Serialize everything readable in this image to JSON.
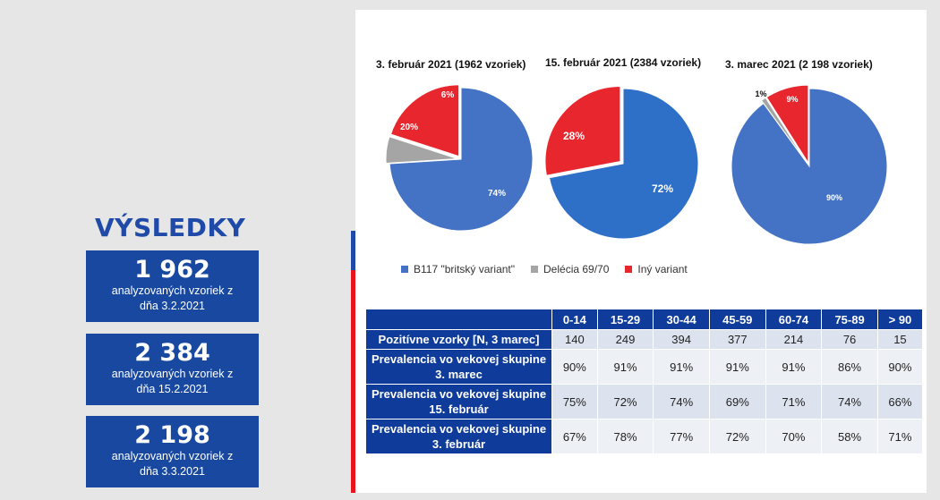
{
  "left": {
    "title": "VÝSLEDKY",
    "stats": [
      {
        "number": "1 962",
        "line1": "analyzovaných vzoriek z",
        "line2": "dňa 3.2.2021"
      },
      {
        "number": "2 384",
        "line1": "analyzovaných vzoriek z",
        "line2": "dňa 15.2.2021"
      },
      {
        "number": "2 198",
        "line1": "analyzovaných vzoriek z",
        "line2": "dňa 3.3.2021"
      }
    ]
  },
  "colors": {
    "blue": "#4472c4",
    "blue2": "#2e6fc7",
    "gray": "#a5a5a5",
    "red": "#e8262e",
    "table_header": "#0f3b9a"
  },
  "chart_data": [
    {
      "type": "pie",
      "title": "3. február 2021 (1962 vzoriek)",
      "categories": [
        "B117 \"britský variant\"",
        "Delécia 69/70",
        "Iný variant"
      ],
      "values": [
        74,
        6,
        20
      ],
      "labels": [
        "74%",
        "6%",
        "20%"
      ]
    },
    {
      "type": "pie",
      "title": "15. február 2021 (2384 vzoriek)",
      "categories": [
        "B117 \"britský variant\"",
        "Iný variant"
      ],
      "values": [
        72,
        28
      ],
      "labels": [
        "72%",
        "28%"
      ]
    },
    {
      "type": "pie",
      "title": "3. marec 2021 (2 198 vzoriek)",
      "categories": [
        "B117 \"britský variant\"",
        "Delécia 69/70",
        "Iný variant"
      ],
      "values": [
        90,
        1,
        9
      ],
      "labels": [
        "90%",
        "1%",
        "9%"
      ]
    }
  ],
  "legend": [
    "B117 \"britský variant\"",
    "Delécia 69/70",
    "Iný variant"
  ],
  "table": {
    "headers": [
      "0-14",
      "15-29",
      "30-44",
      "45-59",
      "60-74",
      "75-89",
      "> 90"
    ],
    "rows": [
      {
        "label": "Pozitívne vzorky [N, 3 marec]",
        "values": [
          "140",
          "249",
          "394",
          "377",
          "214",
          "76",
          "15"
        ]
      },
      {
        "label": "Prevalencia vo vekovej skupine 3. marec",
        "values": [
          "90%",
          "91%",
          "91%",
          "91%",
          "91%",
          "86%",
          "90%"
        ]
      },
      {
        "label": "Prevalencia vo vekovej skupine 15. február",
        "values": [
          "75%",
          "72%",
          "74%",
          "69%",
          "71%",
          "74%",
          "66%"
        ]
      },
      {
        "label": "Prevalencia vo vekovej skupine 3. február",
        "values": [
          "67%",
          "78%",
          "77%",
          "72%",
          "70%",
          "58%",
          "71%"
        ]
      }
    ]
  }
}
